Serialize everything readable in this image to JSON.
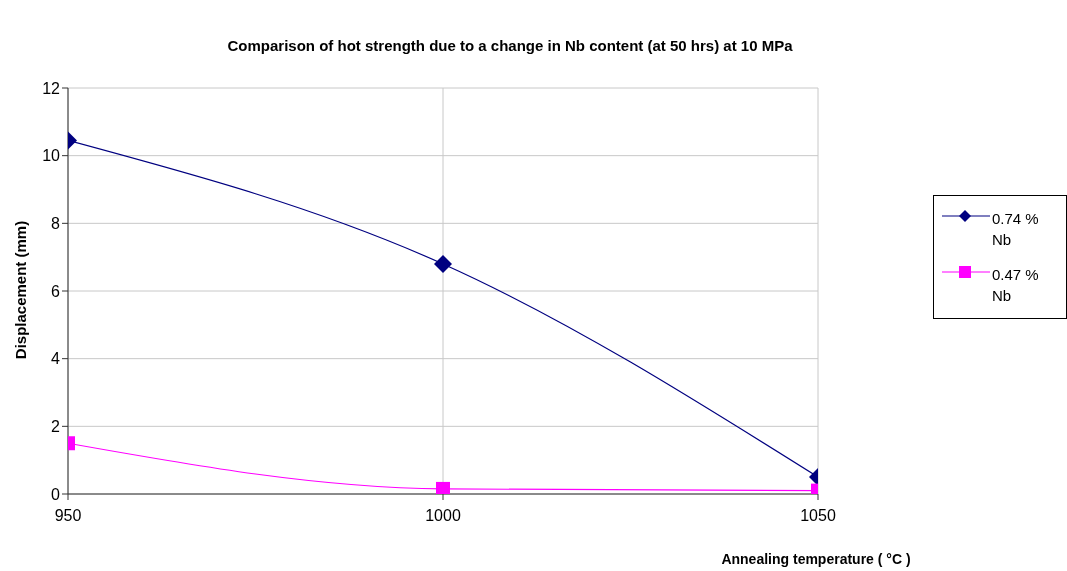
{
  "chart_data": {
    "type": "line",
    "title": "Comparison of hot strength due to a change in Nb content (at 50 hrs) at 10 MPa",
    "xlabel": "Annealing temperature ( °C )",
    "ylabel": "Displacement (mm)",
    "x": [
      950,
      1000,
      1050
    ],
    "series": [
      {
        "name": "0.74 % Nb",
        "color": "#000080",
        "marker": "diamond",
        "values": [
          10.45,
          6.8,
          0.5
        ]
      },
      {
        "name": "0.47 % Nb",
        "color": "#ff00ff",
        "marker": "square",
        "values": [
          1.5,
          0.15,
          0.1
        ]
      }
    ],
    "xlim": [
      950,
      1050
    ],
    "xticks": [
      950,
      1000,
      1050
    ],
    "ylim": [
      0,
      12
    ],
    "yticks": [
      0,
      2,
      4,
      6,
      8,
      10,
      12
    ],
    "grid": true,
    "legend": "right",
    "line_style": "solid"
  }
}
